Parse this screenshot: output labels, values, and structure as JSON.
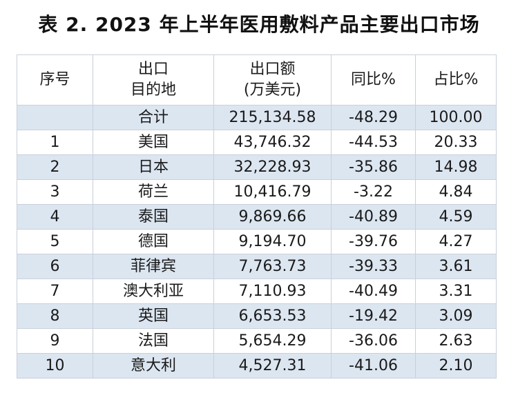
{
  "title": "表 2. 2023 年上半年医用敷料产品主要出口市场",
  "header": {
    "col1": "序号",
    "col2_line1": "出口",
    "col2_line2": "目的地",
    "col3_line1": "出口额",
    "col3_line2": "(万美元)",
    "col4": "同比%",
    "col5": "占比%"
  },
  "rows": [
    {
      "no": "",
      "dest": "合计",
      "amount": "215,134.58",
      "yoy": "-48.29",
      "share": "100.00"
    },
    {
      "no": "1",
      "dest": "美国",
      "amount": "43,746.32",
      "yoy": "-44.53",
      "share": "20.33"
    },
    {
      "no": "2",
      "dest": "日本",
      "amount": "32,228.93",
      "yoy": "-35.86",
      "share": "14.98"
    },
    {
      "no": "3",
      "dest": "荷兰",
      "amount": "10,416.79",
      "yoy": "-3.22",
      "share": "4.84"
    },
    {
      "no": "4",
      "dest": "泰国",
      "amount": "9,869.66",
      "yoy": "-40.89",
      "share": "4.59"
    },
    {
      "no": "5",
      "dest": "德国",
      "amount": "9,194.70",
      "yoy": "-39.76",
      "share": "4.27"
    },
    {
      "no": "6",
      "dest": "菲律宾",
      "amount": "7,763.73",
      "yoy": "-39.33",
      "share": "3.61"
    },
    {
      "no": "7",
      "dest": "澳大利亚",
      "amount": "7,110.93",
      "yoy": "-40.49",
      "share": "3.31"
    },
    {
      "no": "8",
      "dest": "英国",
      "amount": "6,653.53",
      "yoy": "-19.42",
      "share": "3.09"
    },
    {
      "no": "9",
      "dest": "法国",
      "amount": "5,654.29",
      "yoy": "-36.06",
      "share": "2.63"
    },
    {
      "no": "10",
      "dest": "意大利",
      "amount": "4,527.31",
      "yoy": "-41.06",
      "share": "2.10"
    }
  ],
  "colors": {
    "shaded_row": "#dce6f1",
    "border": "#c8d0da",
    "text": "#1a1a1a"
  }
}
